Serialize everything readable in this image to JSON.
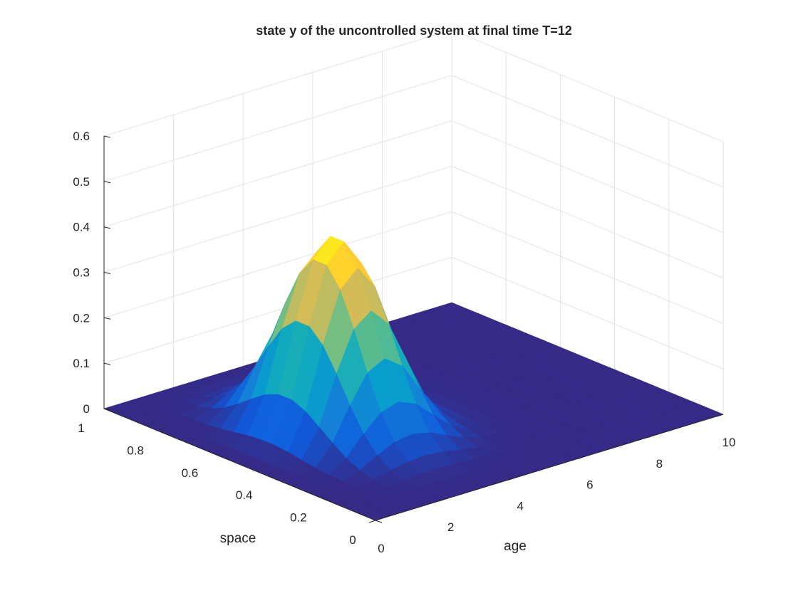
{
  "chart_data": {
    "type": "surface",
    "title": "state y of the uncontrolled system at final time T=12",
    "xlabel": "age",
    "ylabel": "space",
    "zlabel": "",
    "xlim": [
      0,
      10
    ],
    "ylim": [
      0,
      1
    ],
    "zlim": [
      0,
      0.6
    ],
    "x_ticks": [
      0,
      2,
      4,
      6,
      8,
      10
    ],
    "y_ticks": [
      0,
      0.2,
      0.4,
      0.6,
      0.8,
      1
    ],
    "z_ticks": [
      0,
      0.1,
      0.2,
      0.3,
      0.4,
      0.5,
      0.6
    ],
    "x_tick_labels": [
      "0",
      "2",
      "4",
      "6",
      "8",
      "10"
    ],
    "y_tick_labels": [
      "0",
      "0.2",
      "0.4",
      "0.6",
      "0.8",
      "1"
    ],
    "z_tick_labels": [
      "0",
      "0.1",
      "0.2",
      "0.3",
      "0.4",
      "0.5",
      "0.6"
    ],
    "grid": true,
    "colormap": "parula",
    "colormap_stops": [
      "#352a87",
      "#0f5cdd",
      "#1481d6",
      "#06a4ca",
      "#2eb7a4",
      "#87bf77",
      "#d1bb59",
      "#fec832",
      "#f9fb0e"
    ],
    "surface": {
      "x": [
        0,
        0.5,
        1,
        1.5,
        2,
        2.5,
        3,
        3.5,
        4,
        4.5,
        5,
        5.5,
        6,
        6.5,
        7,
        7.5,
        8,
        8.5,
        9,
        9.5,
        10
      ],
      "y": [
        0,
        0.05,
        0.1,
        0.15,
        0.2,
        0.25,
        0.3,
        0.35,
        0.4,
        0.45,
        0.5,
        0.55,
        0.6,
        0.65,
        0.7,
        0.75,
        0.8,
        0.85,
        0.9,
        0.95,
        1
      ],
      "z_rows_by_x": [
        [
          0.0,
          0.0,
          0.0,
          0.0,
          0.0,
          0.0,
          0.0,
          0.0,
          0.0,
          0.0,
          0.0,
          0.0,
          0.0,
          0.0,
          0.0,
          0.0,
          0.0,
          0.0,
          0.0,
          0.0,
          0.0
        ],
        [
          0.0,
          0.0,
          0.0,
          0.0,
          0.0,
          0.0,
          0.0,
          0.0,
          0.0,
          0.0,
          0.0,
          0.0,
          0.0,
          0.0,
          0.0,
          0.0,
          0.0,
          0.0,
          0.0,
          0.0,
          0.0
        ],
        [
          0.0,
          0.0,
          0.0,
          0.0,
          0.0,
          0.001,
          0.003,
          0.006,
          0.011,
          0.016,
          0.019,
          0.019,
          0.016,
          0.011,
          0.006,
          0.003,
          0.001,
          0.0,
          0.0,
          0.0,
          0.0
        ],
        [
          0.0,
          0.0,
          0.001,
          0.002,
          0.006,
          0.014,
          0.028,
          0.049,
          0.072,
          0.094,
          0.107,
          0.107,
          0.094,
          0.072,
          0.049,
          0.028,
          0.014,
          0.006,
          0.002,
          0.001,
          0.0
        ],
        [
          0.0,
          0.0,
          0.001,
          0.005,
          0.014,
          0.035,
          0.07,
          0.12,
          0.177,
          0.228,
          0.257,
          0.257,
          0.228,
          0.177,
          0.12,
          0.07,
          0.035,
          0.014,
          0.005,
          0.001,
          0.0
        ],
        [
          0.0,
          0.0,
          0.002,
          0.007,
          0.021,
          0.052,
          0.105,
          0.18,
          0.264,
          0.338,
          0.38,
          0.38,
          0.338,
          0.264,
          0.18,
          0.105,
          0.052,
          0.021,
          0.007,
          0.002,
          0.0
        ],
        [
          0.0,
          0.0,
          0.002,
          0.008,
          0.024,
          0.058,
          0.117,
          0.2,
          0.293,
          0.374,
          0.42,
          0.42,
          0.374,
          0.293,
          0.2,
          0.117,
          0.058,
          0.024,
          0.008,
          0.002,
          0.0
        ],
        [
          0.0,
          0.0,
          0.002,
          0.007,
          0.02,
          0.05,
          0.101,
          0.172,
          0.252,
          0.322,
          0.361,
          0.361,
          0.322,
          0.252,
          0.172,
          0.101,
          0.05,
          0.02,
          0.007,
          0.002,
          0.0
        ],
        [
          0.0,
          0.0,
          0.001,
          0.004,
          0.013,
          0.032,
          0.065,
          0.112,
          0.164,
          0.209,
          0.235,
          0.235,
          0.209,
          0.164,
          0.112,
          0.065,
          0.032,
          0.013,
          0.004,
          0.001,
          0.0
        ],
        [
          0.0,
          0.0,
          0.001,
          0.002,
          0.006,
          0.015,
          0.031,
          0.053,
          0.078,
          0.099,
          0.111,
          0.111,
          0.099,
          0.078,
          0.053,
          0.031,
          0.015,
          0.006,
          0.002,
          0.001,
          0.0
        ],
        [
          0.0,
          0.0,
          0.0,
          0.001,
          0.002,
          0.005,
          0.01,
          0.017,
          0.025,
          0.032,
          0.036,
          0.036,
          0.032,
          0.025,
          0.017,
          0.01,
          0.005,
          0.002,
          0.001,
          0.0,
          0.0
        ],
        [
          0.0,
          0.0,
          0.0,
          0.0,
          0.001,
          0.002,
          0.003,
          0.005,
          0.007,
          0.009,
          0.01,
          0.01,
          0.009,
          0.007,
          0.005,
          0.003,
          0.002,
          0.001,
          0.0,
          0.0,
          0.0
        ],
        [
          0.0,
          0.0,
          0.0,
          0.0,
          0.0,
          0.001,
          0.001,
          0.002,
          0.002,
          0.003,
          0.003,
          0.003,
          0.003,
          0.002,
          0.002,
          0.001,
          0.001,
          0.0,
          0.0,
          0.0,
          0.0
        ],
        [
          0.0,
          0.0,
          0.0,
          0.0,
          0.0,
          0.0,
          0.0,
          0.001,
          0.001,
          0.001,
          0.001,
          0.001,
          0.001,
          0.001,
          0.001,
          0.0,
          0.0,
          0.0,
          0.0,
          0.0,
          0.0
        ],
        [
          0.0,
          0.0,
          0.0,
          0.0,
          0.0,
          0.0,
          0.0,
          0.0,
          0.0,
          0.0,
          0.0,
          0.0,
          0.0,
          0.0,
          0.0,
          0.0,
          0.0,
          0.0,
          0.0,
          0.0,
          0.0
        ],
        [
          0.0,
          0.0,
          0.0,
          0.0,
          0.0,
          0.0,
          0.0,
          0.0,
          0.0,
          0.0,
          0.0,
          0.0,
          0.0,
          0.0,
          0.0,
          0.0,
          0.0,
          0.0,
          0.0,
          0.0,
          0.0
        ],
        [
          0.0,
          0.0,
          0.0,
          0.0,
          0.0,
          0.0,
          0.0,
          0.0,
          0.0,
          0.0,
          0.0,
          0.0,
          0.0,
          0.0,
          0.0,
          0.0,
          0.0,
          0.0,
          0.0,
          0.0,
          0.0
        ],
        [
          0.0,
          0.0,
          0.0,
          0.0,
          0.0,
          0.0,
          0.0,
          0.0,
          0.0,
          0.0,
          0.0,
          0.0,
          0.0,
          0.0,
          0.0,
          0.0,
          0.0,
          0.0,
          0.0,
          0.0,
          0.0
        ],
        [
          0.0,
          0.0,
          0.0,
          0.0,
          0.0,
          0.0,
          0.0,
          0.0,
          0.0,
          0.0,
          0.0,
          0.0,
          0.0,
          0.0,
          0.0,
          0.0,
          0.0,
          0.0,
          0.0,
          0.0,
          0.0
        ],
        [
          0.0,
          0.0,
          0.0,
          0.0,
          0.0,
          0.0,
          0.0,
          0.0,
          0.0,
          0.0,
          0.0,
          0.0,
          0.0,
          0.0,
          0.0,
          0.0,
          0.0,
          0.0,
          0.0,
          0.0,
          0.0
        ],
        [
          0.0,
          0.0,
          0.0,
          0.0,
          0.0,
          0.0,
          0.0,
          0.0,
          0.0,
          0.0,
          0.0,
          0.0,
          0.0,
          0.0,
          0.0,
          0.0,
          0.0,
          0.0,
          0.0,
          0.0,
          0.0
        ]
      ]
    }
  }
}
